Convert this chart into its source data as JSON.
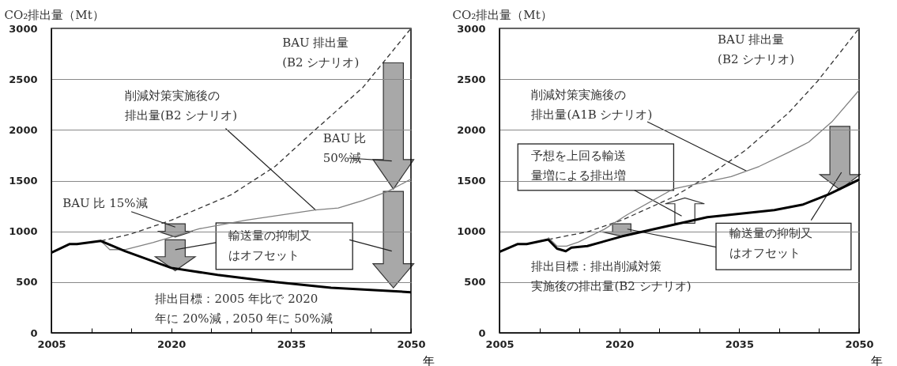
{
  "chart_data": [
    {
      "type": "line",
      "ylabel": "CO₂排出量（Mt）",
      "xlabel": "年",
      "xlim": [
        2005,
        2050
      ],
      "ylim": [
        0,
        3000
      ],
      "xticks": [
        2005,
        {
          "value": 2010,
          "label": null
        },
        {
          "value": 2015,
          "label": null
        },
        2020,
        {
          "value": 2025,
          "label": null
        },
        {
          "value": 2030,
          "label": null
        },
        2035,
        {
          "value": 2040,
          "label": null
        },
        {
          "value": 2045,
          "label": null
        },
        2050
      ],
      "yticks": [
        0,
        500,
        1000,
        1500,
        2000,
        2500,
        3000
      ],
      "grid": "y",
      "series": [
        {
          "color": "#333333",
          "line_style": "dashed",
          "x": [
            2011.2,
            2015,
            2020,
            2027.5,
            2033,
            2038,
            2044,
            2050
          ],
          "values": [
            905,
            975,
            1110,
            1360,
            1640,
            2000,
            2420,
            3000
          ]
        },
        {
          "color": "#808080",
          "line_style": "solid",
          "x": [
            2011.2,
            2012.3,
            2014.2,
            2017.7,
            2023.5,
            2029.3,
            2038,
            2040.9,
            2044,
            2047,
            2050
          ],
          "values": [
            905,
            820,
            820,
            890,
            1025,
            1110,
            1210,
            1230,
            1305,
            1390,
            1515
          ]
        },
        {
          "color": "#000000",
          "line_style": "solid",
          "x": [
            2005,
            2007.3,
            2008.2,
            2011.2,
            2014.2,
            2020,
            2025.8,
            2033,
            2040,
            2050
          ],
          "values": [
            790,
            875,
            875,
            905,
            805,
            640,
            570,
            500,
            445,
            400
          ]
        }
      ],
      "annotations": [
        "BAU 排出量(B2 シナリオ)",
        {
          "text": "削減対策実施後の排出量(B2 シナリオ)",
          "x": 2038.1,
          "y": 1208
        },
        "BAU 比50%減",
        "BAU 比 15%減",
        "輸送量の抑制又はオフセット",
        "排出目標：2005 年比で 2020年に 20%減，2050 年に 50%減"
      ]
    },
    {
      "type": "line",
      "ylabel": "CO₂排出量（Mt）",
      "xlabel": "年",
      "xlim": [
        2005,
        2050
      ],
      "ylim": [
        0,
        3000
      ],
      "xticks": [
        2005,
        {
          "value": 2010,
          "label": null
        },
        {
          "value": 2015,
          "label": null
        },
        2020,
        {
          "value": 2025,
          "label": null
        },
        {
          "value": 2030,
          "label": null
        },
        2035,
        {
          "value": 2040,
          "label": null
        },
        {
          "value": 2045,
          "label": null
        },
        2050
      ],
      "yticks": [
        0,
        500,
        1000,
        1500,
        2000,
        2500,
        3000
      ],
      "grid": "y",
      "series": [
        {
          "color": "#333333",
          "line_style": "dashed",
          "x": [
            2011.1,
            2016,
            2020.3,
            2026.8,
            2031,
            2035.8,
            2041.2,
            2044.8,
            2050
          ],
          "values": [
            920,
            995,
            1110,
            1340,
            1540,
            1800,
            2170,
            2480,
            3000
          ]
        },
        {
          "color": "#808080",
          "line_style": "solid",
          "x": [
            2011.1,
            2012.2,
            2013.4,
            2014.9,
            2018.1,
            2021,
            2026.8,
            2034,
            2037.5,
            2041.2,
            2043.7,
            2046.6,
            2050
          ],
          "values": [
            940,
            855,
            855,
            895,
            1020,
            1165,
            1420,
            1540,
            1640,
            1780,
            1880,
            2080,
            2390
          ]
        },
        {
          "color": "#000000",
          "line_style": "solid",
          "x": [
            2005,
            2007.3,
            2008.4,
            2011.1,
            2012.2,
            2013.3,
            2014,
            2016,
            2020.3,
            2026.8,
            2031,
            2039.4,
            2043,
            2046.2,
            2050
          ],
          "values": [
            797,
            875,
            875,
            920,
            830,
            805,
            840,
            855,
            950,
            1065,
            1140,
            1210,
            1265,
            1365,
            1510
          ]
        }
      ],
      "annotations": [
        "BAU 排出量(B2 シナリオ)",
        {
          "text": "削減対策実施後の排出量(A1B シナリオ)",
          "x": 2035.9,
          "y": 1596
        },
        "予想を上回る輸送量増による排出増",
        "輸送量の抑制又はオフセット",
        "排出目標：排出削減対策実施後の排出量(B2 シナリオ)"
      ]
    }
  ]
}
